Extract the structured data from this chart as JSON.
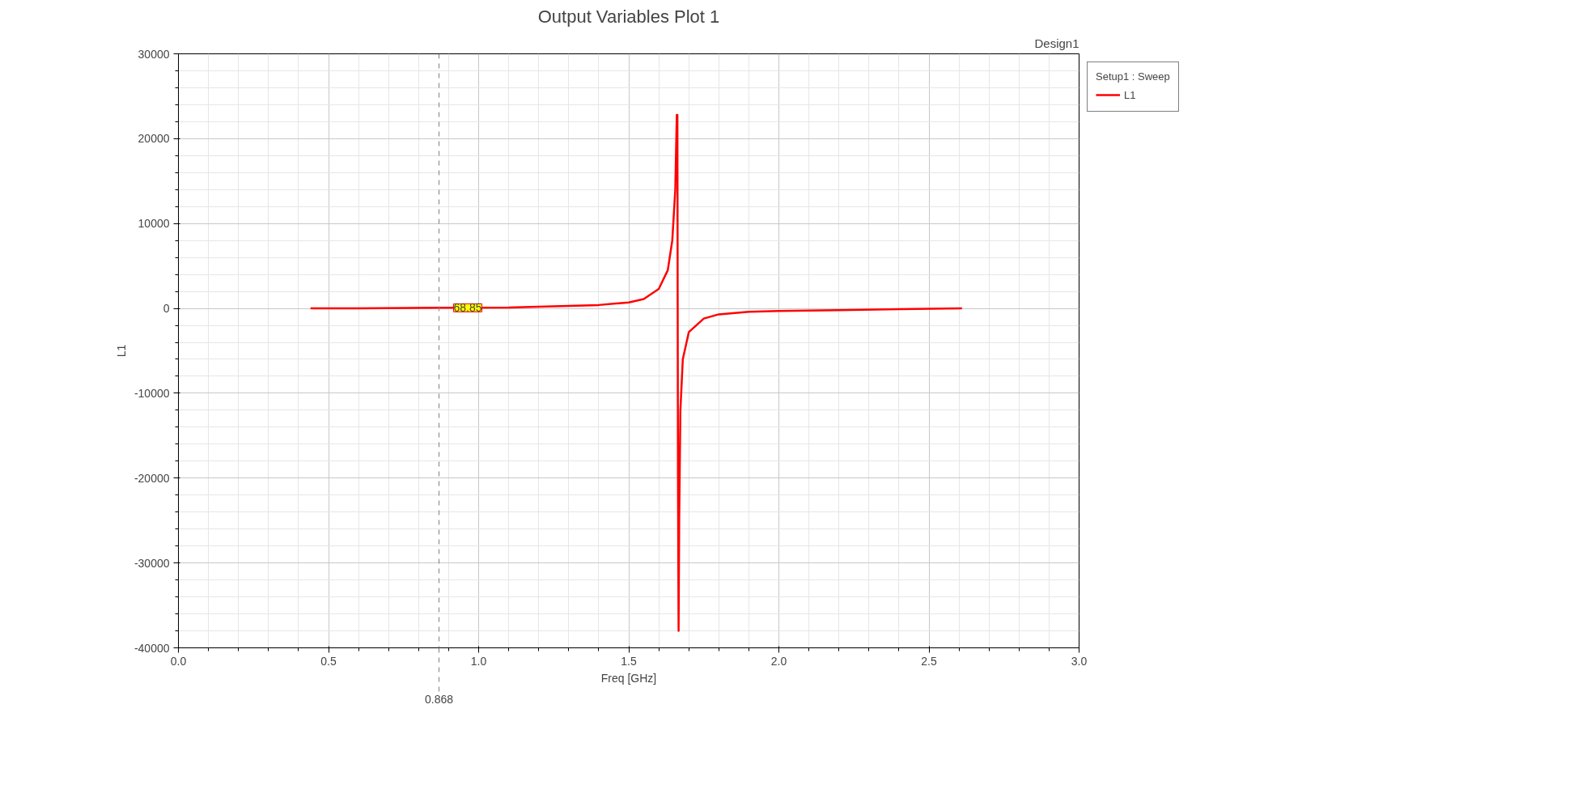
{
  "chart_data": {
    "type": "line",
    "title": "Output Variables Plot 1",
    "subtitle": "Design1",
    "xlabel": "Freq [GHz]",
    "ylabel": "L1",
    "legend_title": "Setup1 : Sweep",
    "x": [
      0.44,
      0.6,
      0.868,
      1.1,
      1.2,
      1.4,
      1.5,
      1.55,
      1.6,
      1.63,
      1.645,
      1.655,
      1.66,
      1.662,
      1.663,
      1.664,
      1.666,
      1.668,
      1.672,
      1.68,
      1.7,
      1.75,
      1.8,
      1.9,
      2.0,
      2.2,
      2.4,
      2.61
    ],
    "series": [
      {
        "name": "L1",
        "color": "#ff0000",
        "values": [
          0,
          0,
          68.85,
          100,
          200,
          400,
          700,
          1100,
          2300,
          4500,
          8000,
          14000,
          22800,
          22800,
          0,
          -20000,
          -38000,
          -25000,
          -12000,
          -6000,
          -2800,
          -1200,
          -700,
          -400,
          -300,
          -200,
          -100,
          0
        ]
      }
    ],
    "xlim": [
      0,
      3
    ],
    "ylim": [
      -40000,
      30000
    ],
    "xticks": [
      {
        "value": 0,
        "label": "0.0"
      },
      {
        "value": 0.5,
        "label": "0.5"
      },
      {
        "value": 1,
        "label": "1.0"
      },
      {
        "value": 1.5,
        "label": "1.5"
      },
      {
        "value": 2,
        "label": "2.0"
      },
      {
        "value": 2.5,
        "label": "2.5"
      },
      {
        "value": 3,
        "label": "3.0"
      }
    ],
    "yticks": [
      -40000,
      -30000,
      -20000,
      -10000,
      0,
      10000,
      20000,
      30000
    ],
    "annotations": [
      {
        "text": "68.85",
        "x": 0.868,
        "y": 68.85
      }
    ],
    "ref_lines": [
      {
        "axis": "x",
        "value": 0.868,
        "label": "0.868",
        "color": "#808080",
        "line_style": "dashed"
      }
    ],
    "grid": true,
    "legend": "top right",
    "marker": "none",
    "line_style": "solid"
  }
}
